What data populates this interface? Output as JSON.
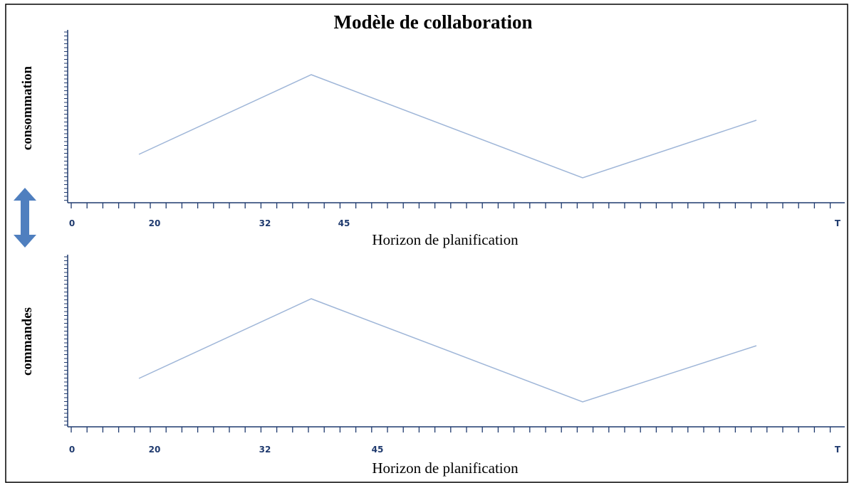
{
  "title": "Modèle de collaboration",
  "panels": [
    {
      "y_label": "consommation",
      "x_label": "Horizon de planification",
      "x_tick_labels": [
        "0",
        "20",
        "32",
        "45",
        "T"
      ]
    },
    {
      "y_label": "commandes",
      "x_label": "Horizon de planification",
      "x_tick_labels": [
        "0",
        "20",
        "32",
        "45",
        "T"
      ]
    }
  ]
}
